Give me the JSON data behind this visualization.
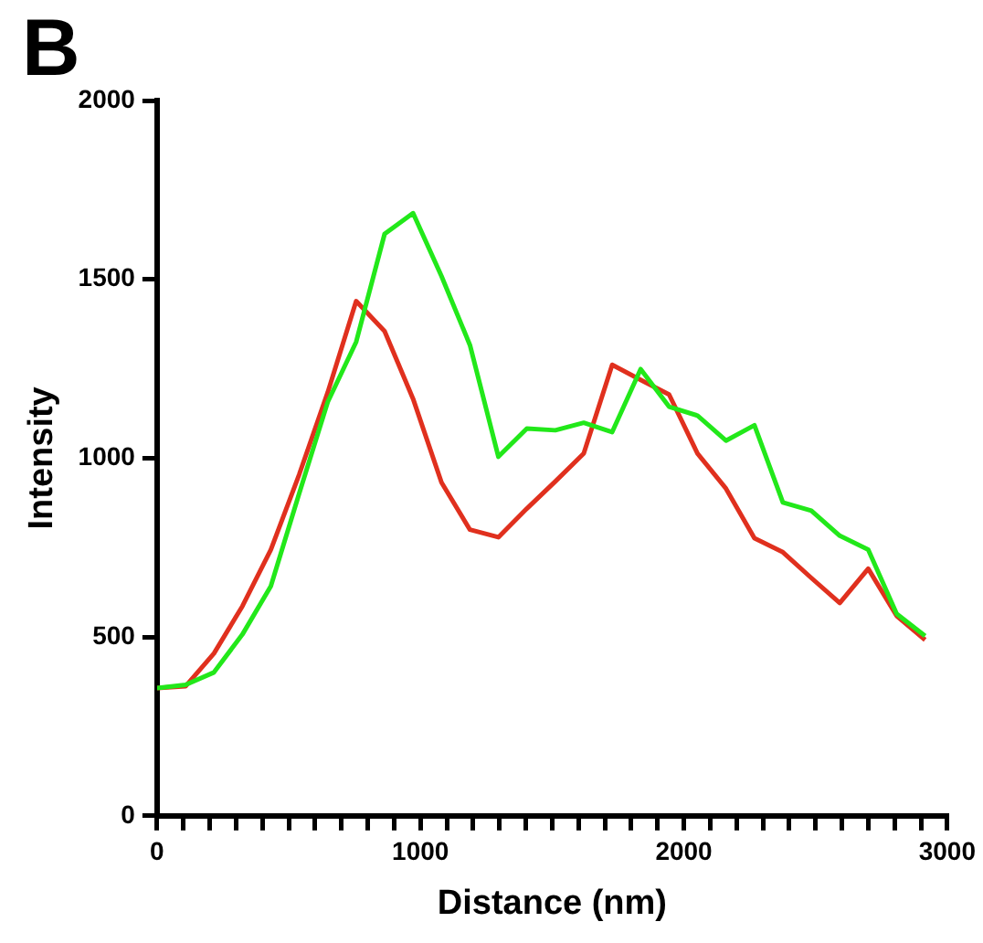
{
  "chart_data": {
    "type": "line",
    "title": "B",
    "xlabel": "Distance (nm)",
    "ylabel": "Intensity",
    "x": [
      0,
      108,
      216,
      324,
      432,
      540,
      648,
      756,
      864,
      972,
      1080,
      1188,
      1296,
      1404,
      1512,
      1620,
      1728,
      1836,
      1944,
      2052,
      2160,
      2268,
      2376,
      2484,
      2592,
      2700,
      2808,
      2916
    ],
    "series": [
      {
        "color": "#22e81a",
        "values": [
          357,
          366,
          401,
          507,
          642,
          902,
          1157,
          1325,
          1627,
          1685,
          1509,
          1316,
          1004,
          1083,
          1078,
          1099,
          1073,
          1249,
          1144,
          1119,
          1049,
          1092,
          876,
          853,
          783,
          744,
          565,
          503
        ]
      },
      {
        "color": "#e0301e",
        "values": [
          357,
          362,
          454,
          586,
          744,
          955,
          1184,
          1439,
          1355,
          1166,
          932,
          800,
          779,
          859,
          935,
          1013,
          1261,
          1219,
          1178,
          1013,
          915,
          776,
          737,
          665,
          595,
          691,
          559,
          492
        ]
      }
    ],
    "xlim": [
      0,
      3000
    ],
    "ylim": [
      0,
      2000
    ],
    "xticks": [
      0,
      {
        "value": 100,
        "label": null
      },
      {
        "value": 200,
        "label": null
      },
      {
        "value": 300,
        "label": null
      },
      {
        "value": 400,
        "label": null
      },
      {
        "value": 500,
        "label": null
      },
      {
        "value": 600,
        "label": null
      },
      {
        "value": 700,
        "label": null
      },
      {
        "value": 800,
        "label": null
      },
      {
        "value": 900,
        "label": null
      },
      1000,
      {
        "value": 1100,
        "label": null
      },
      {
        "value": 1200,
        "label": null
      },
      {
        "value": 1300,
        "label": null
      },
      {
        "value": 1400,
        "label": null
      },
      {
        "value": 1500,
        "label": null
      },
      {
        "value": 1600,
        "label": null
      },
      {
        "value": 1700,
        "label": null
      },
      {
        "value": 1800,
        "label": null
      },
      {
        "value": 1900,
        "label": null
      },
      2000,
      {
        "value": 2100,
        "label": null
      },
      {
        "value": 2200,
        "label": null
      },
      {
        "value": 2300,
        "label": null
      },
      {
        "value": 2400,
        "label": null
      },
      {
        "value": 2500,
        "label": null
      },
      {
        "value": 2600,
        "label": null
      },
      {
        "value": 2700,
        "label": null
      },
      {
        "value": 2800,
        "label": null
      },
      {
        "value": 2900,
        "label": null
      },
      3000
    ],
    "yticks": [
      0,
      500,
      1000,
      1500,
      2000
    ],
    "grid": false,
    "legend": false,
    "marker": "none",
    "line_style": "solid"
  }
}
